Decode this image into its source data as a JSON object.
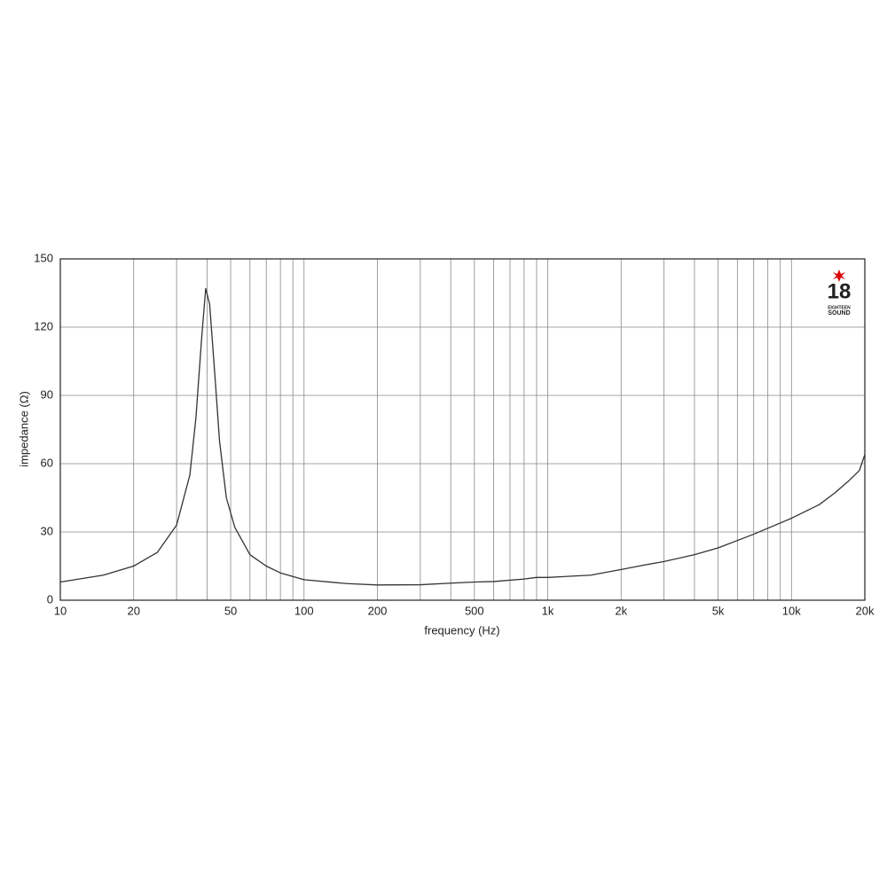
{
  "chart_data": {
    "type": "line",
    "xlabel": "frequency (Hz)",
    "ylabel": "impedance (Ω)",
    "xscale": "log",
    "grid": true,
    "xlim": [
      10,
      20000
    ],
    "ylim": [
      0,
      150
    ],
    "xticks": [
      10,
      20,
      50,
      100,
      200,
      500,
      {
        "value": 1000,
        "label": "1k"
      },
      {
        "value": 2000,
        "label": "2k"
      },
      {
        "value": 5000,
        "label": "5k"
      },
      {
        "value": 10000,
        "label": "10k"
      },
      {
        "value": 20000,
        "label": "20k"
      }
    ],
    "xminor_ticks": [
      30,
      40,
      60,
      70,
      80,
      90,
      300,
      400,
      600,
      700,
      800,
      900,
      3000,
      4000,
      6000,
      7000,
      8000,
      9000
    ],
    "yticks": [
      0,
      30,
      60,
      90,
      120,
      150
    ],
    "series": [
      {
        "color": "#333333",
        "x": [
          10,
          15,
          20,
          25,
          30,
          34,
          36,
          38,
          39.5,
          41,
          43,
          45,
          48,
          52,
          60,
          70,
          80,
          100,
          150,
          200,
          300,
          400,
          500,
          600,
          800,
          900,
          1000,
          1500,
          2000,
          2500,
          3000,
          4000,
          5000,
          7000,
          10000,
          13000,
          15000,
          17000,
          19000,
          20000
        ],
        "values": [
          8,
          11,
          15,
          21,
          33,
          55,
          80,
          115,
          137,
          130,
          100,
          70,
          45,
          32,
          20,
          15,
          12,
          9,
          7.3,
          6.7,
          6.8,
          7.5,
          8,
          8.2,
          9.3,
          10,
          10,
          11,
          13.5,
          15.5,
          17,
          20,
          23,
          29,
          36,
          42,
          47,
          52,
          57,
          64
        ]
      }
    ]
  },
  "logo": {
    "number": "18",
    "line1": "EIGHTEEN",
    "line2": "SOUND"
  }
}
